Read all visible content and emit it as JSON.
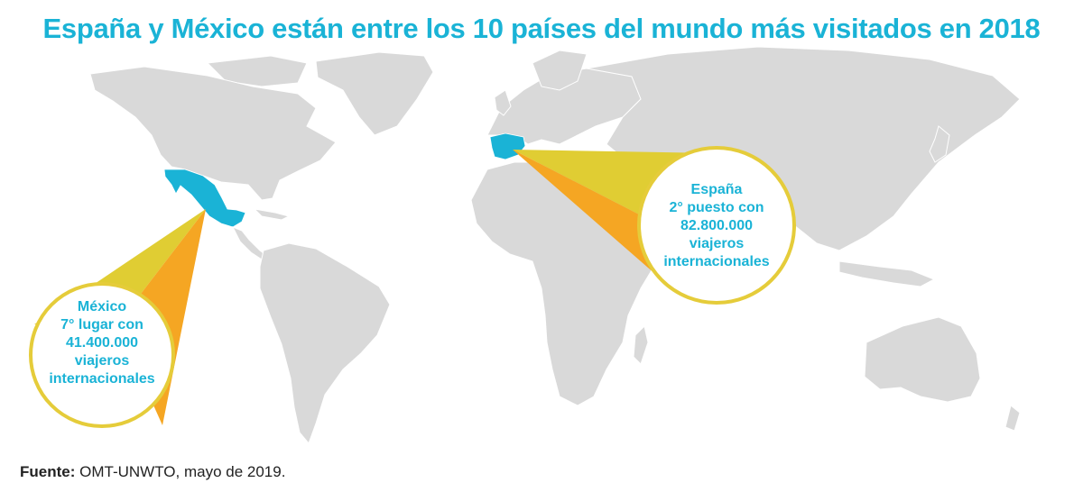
{
  "title": "España y México están entre los 10 países del mundo más visitados en 2018",
  "colors": {
    "title": "#1ab3d6",
    "highlight_country": "#1ab3d6",
    "land": "#d9d9d9",
    "cone_light": "#e0cd33",
    "cone_dark": "#f5a623",
    "circle_border": "#e5cc3a"
  },
  "callouts": {
    "mexico": {
      "country": "México",
      "rank": "7° lugar con",
      "visitors": "41.400.000",
      "unit1": "viajeros",
      "unit2": "internacionales"
    },
    "spain": {
      "country": "España",
      "rank": "2° puesto con",
      "visitors": "82.800.000",
      "unit1": "viajeros",
      "unit2": "internacionales"
    }
  },
  "source": {
    "label": "Fuente:",
    "text": " OMT-UNWTO, mayo de 2019."
  }
}
